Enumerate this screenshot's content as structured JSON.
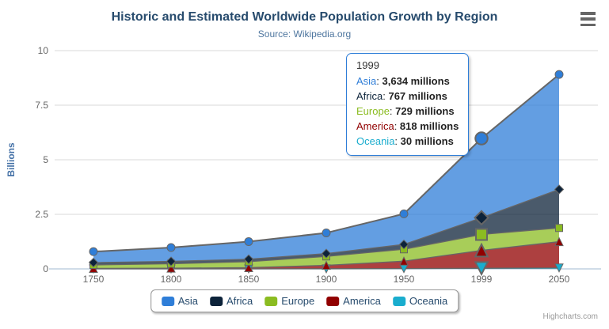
{
  "header": {
    "title": "Historic and Estimated Worldwide Population Growth by Region",
    "subtitle": "Source: Wikipedia.org"
  },
  "chart_data": {
    "type": "area",
    "stacking": "normal",
    "title": "Historic and Estimated Worldwide Population Growth by Region",
    "subtitle": "Source: Wikipedia.org",
    "categories": [
      "1750",
      "1800",
      "1850",
      "1900",
      "1950",
      "1999",
      "2050"
    ],
    "xlabel": "",
    "ylabel": "Billions",
    "ylim": [
      0,
      10
    ],
    "yticks": [
      {
        "v": 0,
        "label": "0"
      },
      {
        "v": 2.5,
        "label": "2.5"
      },
      {
        "v": 5,
        "label": "5"
      },
      {
        "v": 7.5,
        "label": "7.5"
      },
      {
        "v": 10,
        "label": "10"
      }
    ],
    "values_unit": "millions",
    "grid": true,
    "legend_position": "bottom",
    "hover_category_index": 5,
    "series": [
      {
        "name": "Asia",
        "color": "#2f7ed8",
        "marker": "circle",
        "line_width": 2,
        "values": [
          502,
          635,
          809,
          947,
          1402,
          3634,
          5268
        ]
      },
      {
        "name": "Africa",
        "color": "#0d233a",
        "marker": "diamond",
        "line_width": 1.3,
        "values": [
          106,
          107,
          111,
          133,
          221,
          767,
          1766
        ]
      },
      {
        "name": "Europe",
        "color": "#8bbc21",
        "marker": "square",
        "line_width": 1.3,
        "values": [
          163,
          203,
          276,
          408,
          547,
          729,
          628
        ]
      },
      {
        "name": "America",
        "color": "#910000",
        "marker": "triangle",
        "line_width": 1.3,
        "values": [
          18,
          31,
          54,
          156,
          339,
          818,
          1201
        ]
      },
      {
        "name": "Oceania",
        "color": "#1aadce",
        "marker": "triangle-down",
        "line_width": 1.3,
        "values": [
          2,
          2,
          2,
          6,
          13,
          30,
          46
        ]
      }
    ]
  },
  "tooltip": {
    "header": "1999",
    "border_color": "#2f7ed8",
    "rows": [
      {
        "label": "Asia",
        "value": "3,634 millions",
        "color": "#2f7ed8"
      },
      {
        "label": "Africa",
        "value": "767 millions",
        "color": "#0d233a"
      },
      {
        "label": "Europe",
        "value": "729 millions",
        "color": "#8bbc21"
      },
      {
        "label": "America",
        "value": "818 millions",
        "color": "#910000"
      },
      {
        "label": "Oceania",
        "value": "30 millions",
        "color": "#1aadce"
      }
    ]
  },
  "legend": {
    "items": [
      {
        "label": "Asia",
        "color": "#2f7ed8"
      },
      {
        "label": "Africa",
        "color": "#0d233a"
      },
      {
        "label": "Europe",
        "color": "#8bbc21"
      },
      {
        "label": "America",
        "color": "#910000"
      },
      {
        "label": "Oceania",
        "color": "#1aadce"
      }
    ]
  },
  "credits": {
    "label": "Highcharts.com"
  },
  "theme": {
    "title_color": "#274b6d",
    "subtitle_color": "#4d759e",
    "axis_label_color": "#666666",
    "y_axis_title_color": "#4572a7",
    "grid_color": "#d8d8d8",
    "axis_line_color": "#c0d0e0",
    "series_line_color": "#666666",
    "marker_stroke_color": "#666666",
    "legend_text_color": "#274b6d",
    "legend_border_color": "#999999",
    "credits_color": "#9a9a9a",
    "menu_icon_color": "#666666",
    "fill_opacity": 0.75
  }
}
